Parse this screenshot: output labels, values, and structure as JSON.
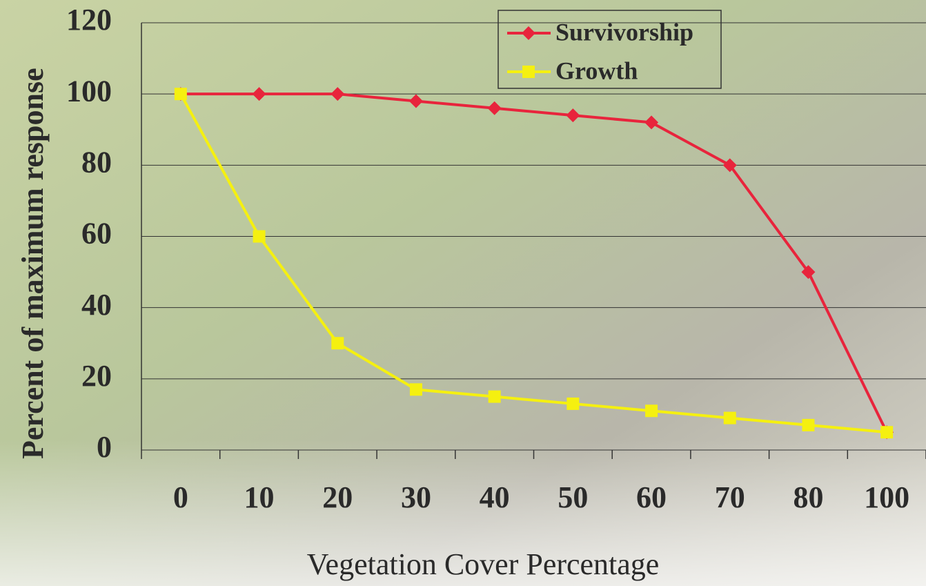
{
  "chart_data": {
    "type": "line",
    "x_label": "Vegetation Cover Percentage",
    "y_label": "Percent of maximum response",
    "categories": [
      "0",
      "10",
      "20",
      "30",
      "40",
      "50",
      "60",
      "70",
      "80",
      "100"
    ],
    "series": [
      {
        "name": "Survivorship",
        "color": "#e8243c",
        "marker": "diamond",
        "values": [
          100,
          100,
          100,
          98,
          96,
          94,
          92,
          80,
          50,
          5
        ]
      },
      {
        "name": "Growth",
        "color": "#f5f010",
        "marker": "square",
        "values": [
          100,
          60,
          30,
          17,
          15,
          13,
          11,
          9,
          7,
          5
        ]
      }
    ],
    "ylim": [
      0,
      120
    ],
    "yticks": [
      0,
      20,
      40,
      60,
      80,
      100,
      120
    ],
    "grid": true
  }
}
